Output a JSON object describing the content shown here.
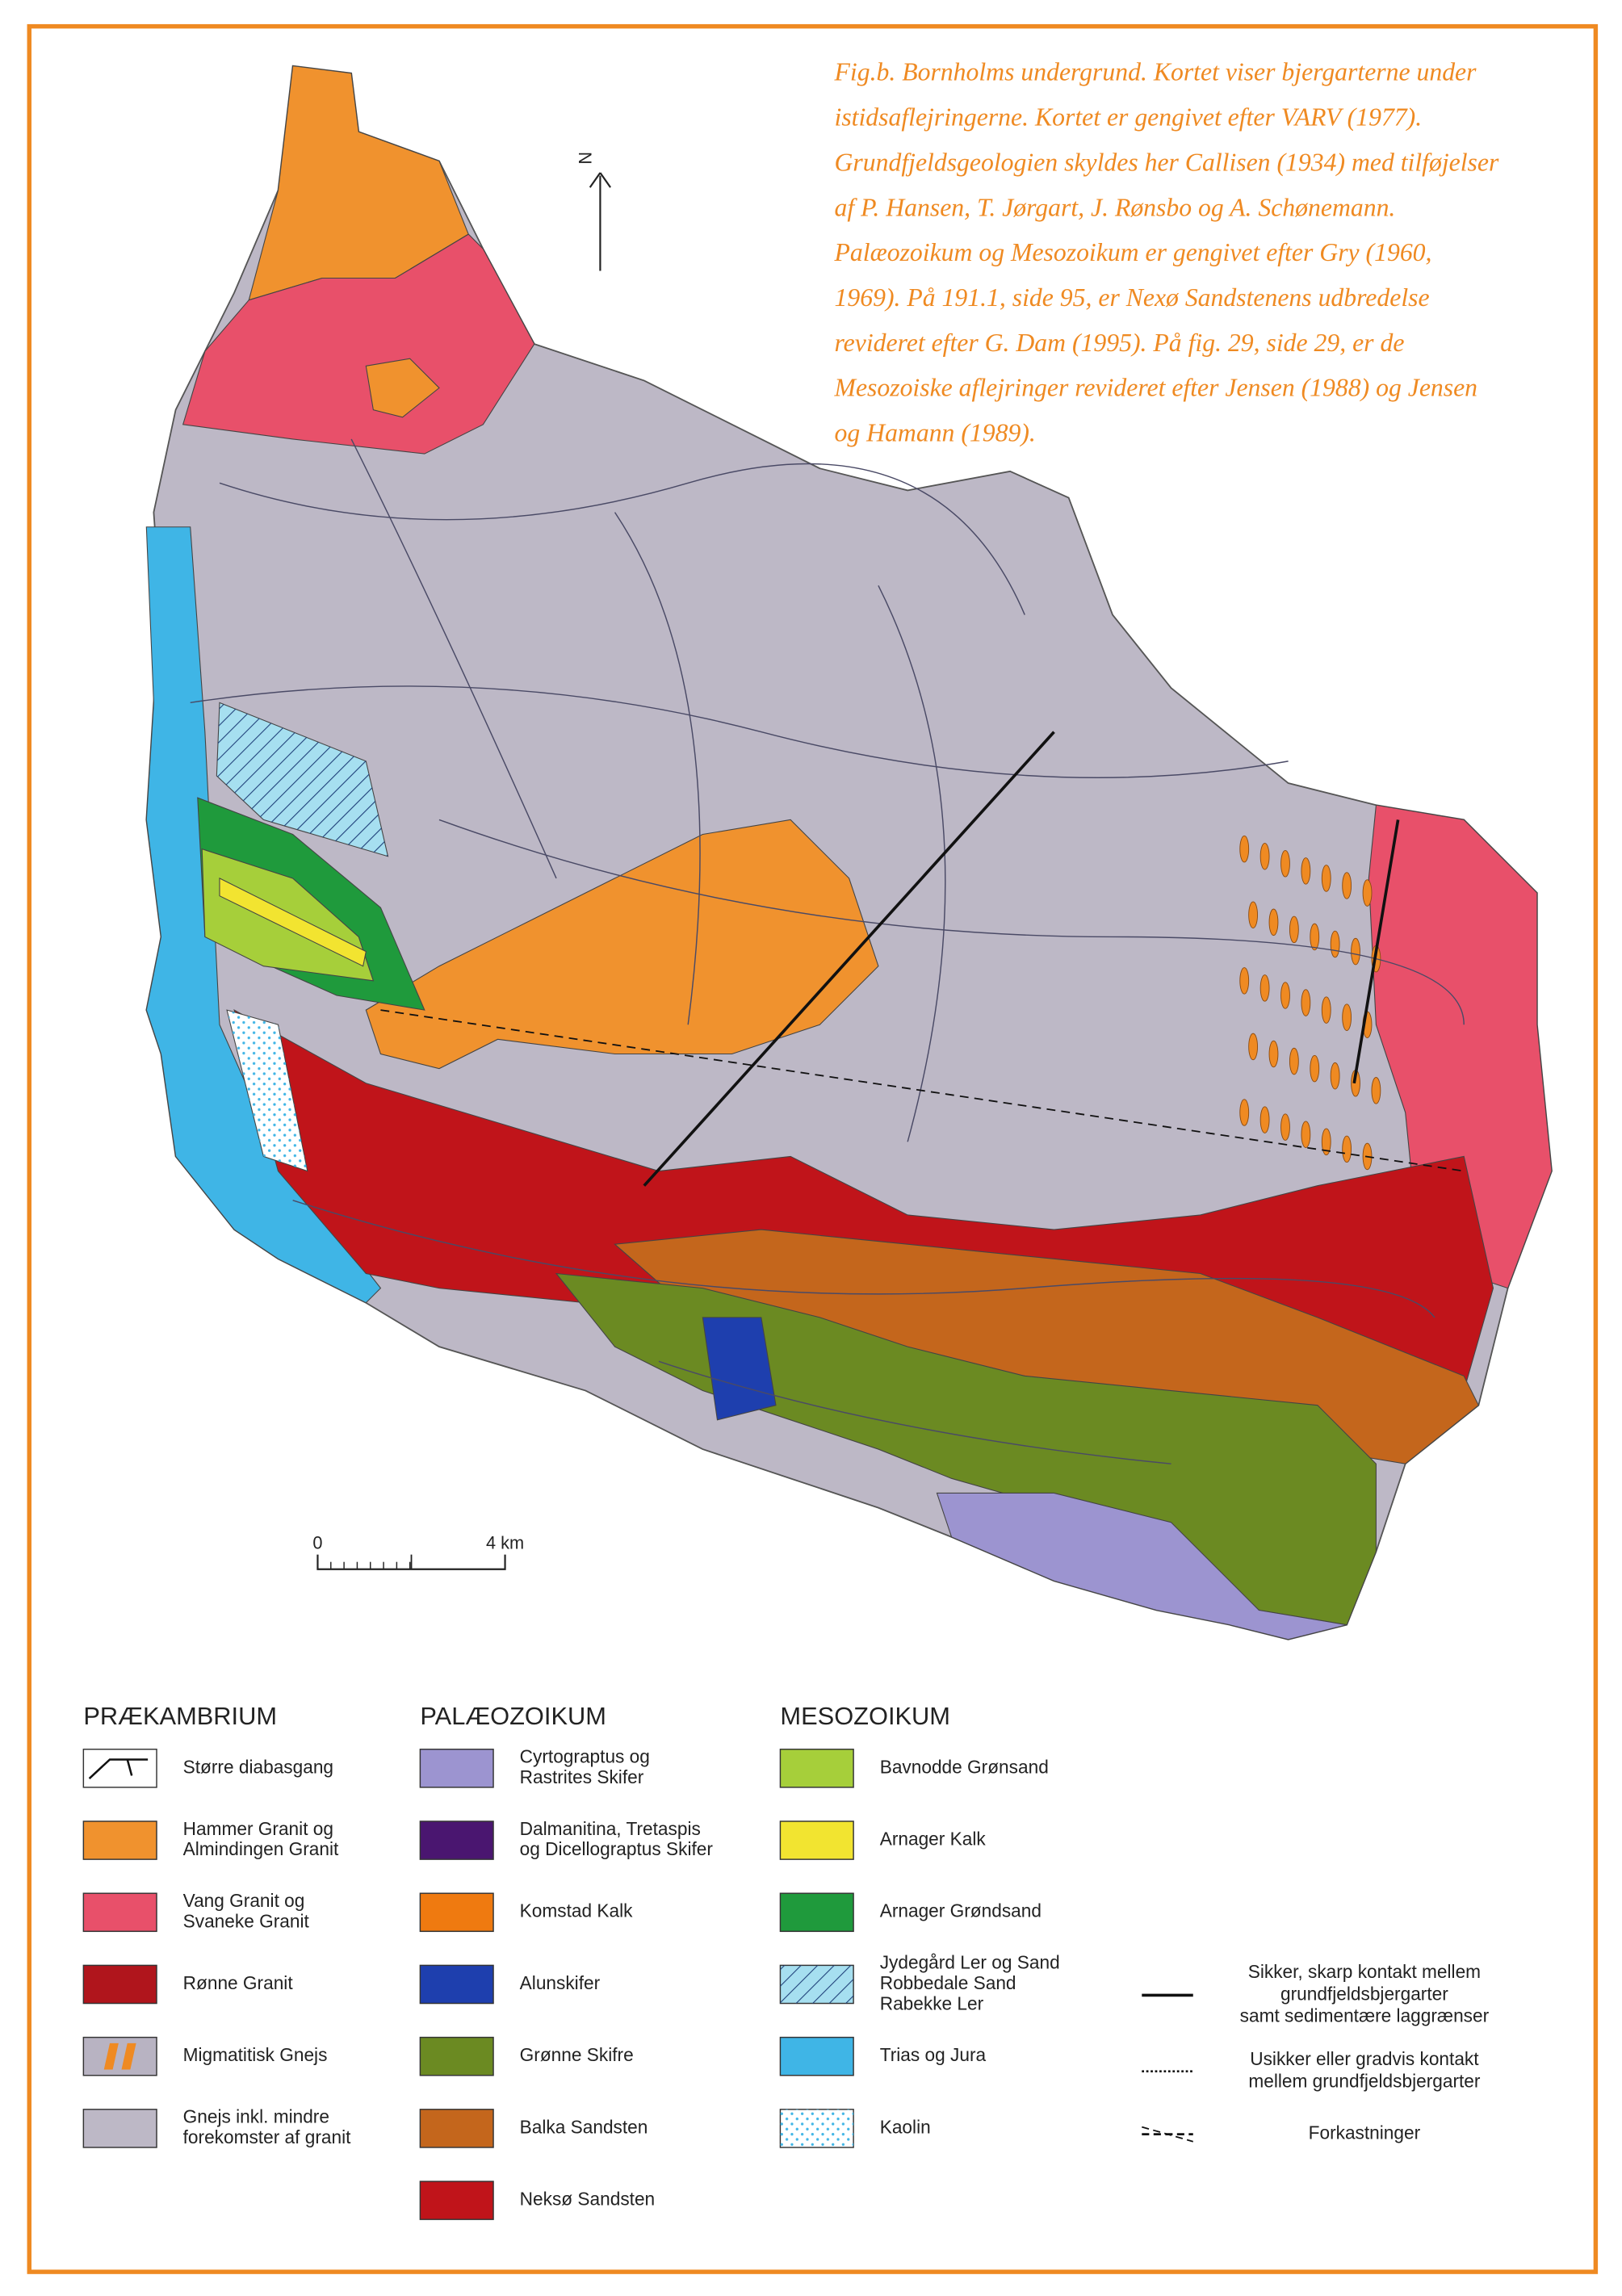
{
  "caption": {
    "lines": [
      "Fig.b. Bornholms undergrund. Kortet viser bjergarterne under",
      "istidsaflejringerne. Kortet er gengivet efter VARV (1977).",
      "Grundfjeldsgeologien skyldes her Callisen (1934) med tilføjelser",
      "af P. Hansen, T. Jørgart, J. Rønsbo og A. Schønemann.",
      "Palæozoikum og Mesozoikum er gengivet efter Gry (1960,",
      "1969). På 191.1, side 95,  er Nexø Sandstenens udbredelse",
      "revideret efter G. Dam (1995). På fig. 29, side 29, er de",
      "Mesozoiske aflejringer revideret efter Jensen (1988) og Jensen",
      "og Hamann (1989)."
    ]
  },
  "north_arrow": {
    "label": "N"
  },
  "scale_bar": {
    "start_label": "0",
    "end_label": "4 km"
  },
  "legend": {
    "sections": [
      {
        "title": "PRÆKAMBRIUM",
        "items": [
          {
            "lines": [
              "Større diabasgang"
            ],
            "color": "#ffffff",
            "pattern": "dyke"
          },
          {
            "lines": [
              "Hammer Granit og",
              "Almindingen Granit"
            ],
            "color": "#f0922e"
          },
          {
            "lines": [
              "Vang Granit og",
              "Svaneke Granit"
            ],
            "color": "#e8506a"
          },
          {
            "lines": [
              "Rønne Granit"
            ],
            "color": "#b0151c"
          },
          {
            "lines": [
              "Migmatitisk Gnejs"
            ],
            "color": "#b8b3c2",
            "pattern": "migmatite"
          },
          {
            "lines": [
              "Gnejs inkl. mindre",
              "forekomster af granit"
            ],
            "color": "#bdb8c6"
          }
        ]
      },
      {
        "title": "PALÆOZOIKUM",
        "items": [
          {
            "lines": [
              "Cyrtograptus og",
              "Rastrites Skifer"
            ],
            "color": "#9c94d0"
          },
          {
            "lines": [
              "Dalmanitina, Tretaspis",
              "og Dicellograptus Skifer"
            ],
            "color": "#4a1670"
          },
          {
            "lines": [
              "Komstad Kalk"
            ],
            "color": "#ef7a10"
          },
          {
            "lines": [
              "Alunskifer"
            ],
            "color": "#1e3fae"
          },
          {
            "lines": [
              "Grønne Skifre"
            ],
            "color": "#6b8a22"
          },
          {
            "lines": [
              "Balka Sandsten"
            ],
            "color": "#c4661c"
          },
          {
            "lines": [
              "Neksø Sandsten"
            ],
            "color": "#c0141a"
          }
        ]
      },
      {
        "title": "MESOZOIKUM",
        "items": [
          {
            "lines": [
              "Bavnodde Grønsand"
            ],
            "color": "#a6cf3a"
          },
          {
            "lines": [
              "Arnager Kalk"
            ],
            "color": "#f2e430"
          },
          {
            "lines": [
              "Arnager Grøndsand"
            ],
            "color": "#1f9a3c"
          },
          {
            "lines": [
              "Jydegård Ler og Sand",
              "Robbedale Sand",
              "Rabekke Ler"
            ],
            "color": "#a6dff0",
            "pattern": "hatch"
          },
          {
            "lines": [
              "Trias og Jura"
            ],
            "color": "#3fb5e6"
          },
          {
            "lines": [
              "Kaolin"
            ],
            "color": "#ffffff",
            "pattern": "dots"
          }
        ]
      }
    ],
    "line_symbols": [
      {
        "lines": [
          "Sikker, skarp kontakt mellem",
          "grundfjeldsbjergarter",
          "samt sedimentære laggrænser"
        ],
        "style": "solid"
      },
      {
        "lines": [
          "Usikker eller gradvis kontakt",
          "mellem grundfjeldsbjergarter"
        ],
        "style": "dotted"
      },
      {
        "lines": [
          "Forkastninger"
        ],
        "style": "dashed"
      }
    ]
  }
}
